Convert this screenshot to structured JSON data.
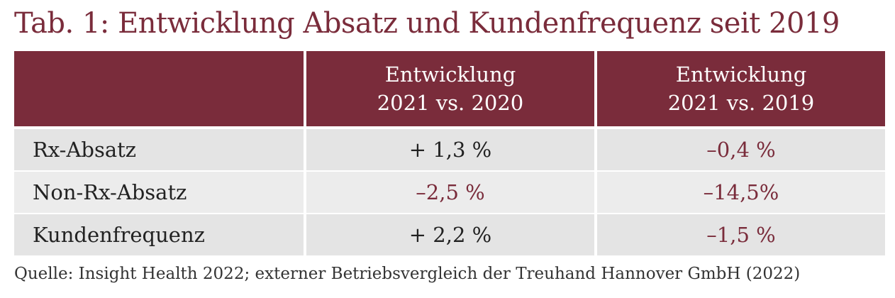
{
  "title": "Tab. 1: Entwicklung Absatz und Kundenfrequenz seit 2019",
  "table": {
    "headers": [
      {
        "line1": "",
        "line2": ""
      },
      {
        "line1": "Entwicklung",
        "line2": "2021 vs. 2020"
      },
      {
        "line1": "Entwicklung",
        "line2": "2021 vs. 2019"
      }
    ],
    "rows": [
      {
        "label": "Rx-Absatz",
        "v2020": "+ 1,3 %",
        "v2019": "–0,4 %"
      },
      {
        "label": "Non-Rx-Absatz",
        "v2020": "–2,5 %",
        "v2019": "–14,5%"
      },
      {
        "label": "Kundenfrequenz",
        "v2020": "+ 2,2 %",
        "v2019": "–1,5 %"
      }
    ]
  },
  "source": "Quelle: Insight Health 2022; externer Betriebsvergleich der Treuhand Hannover GmbH (2022)",
  "colors": {
    "accent": "#7a2c3b",
    "row_bg": "#e4e4e4",
    "header_text": "#ffffff"
  }
}
